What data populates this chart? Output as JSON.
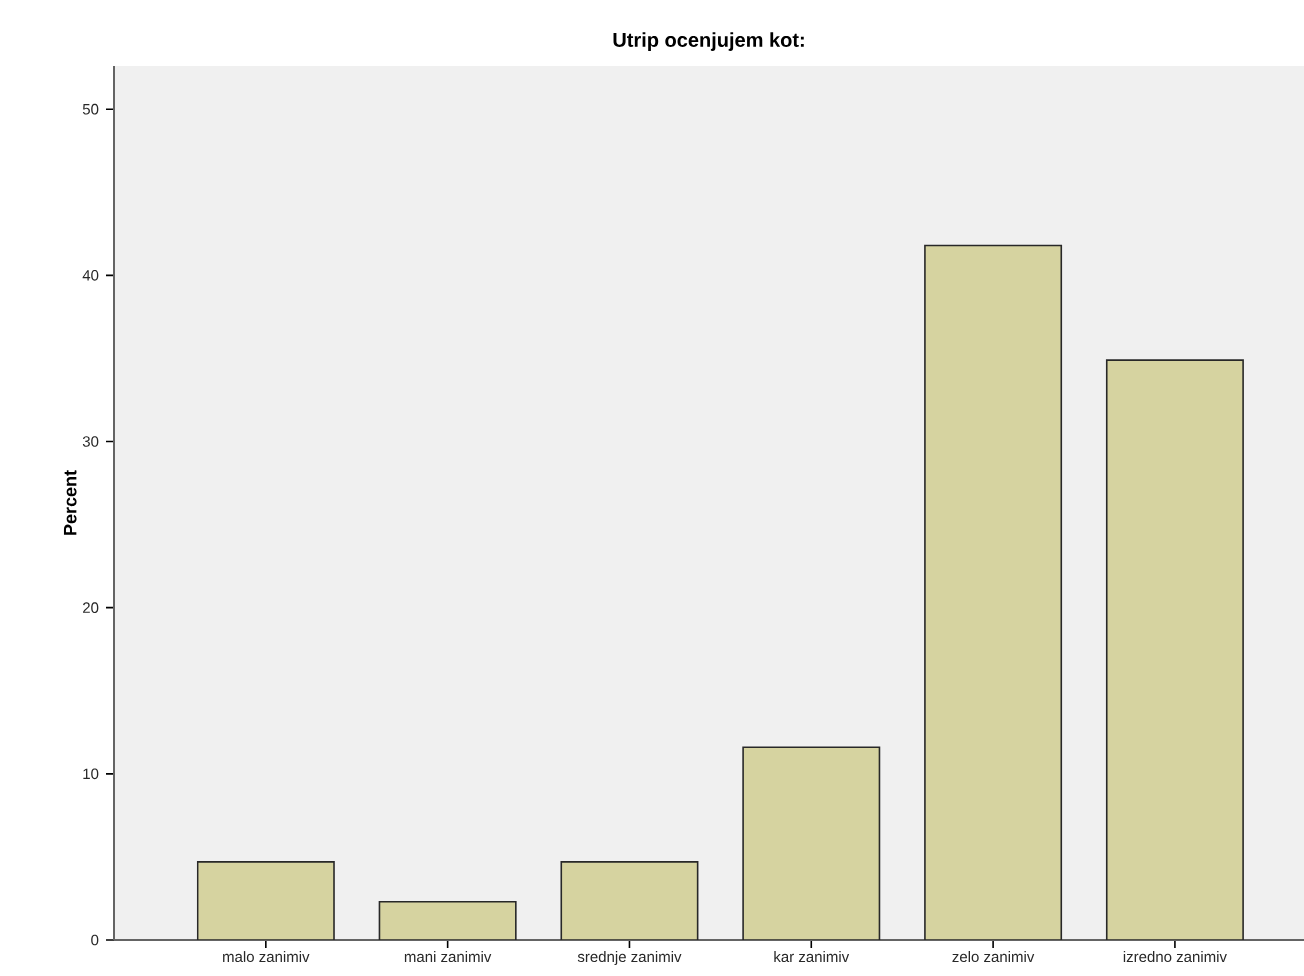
{
  "chart_data": {
    "type": "bar",
    "title": "Utrip ocenjujem kot:",
    "ylabel": "Percent",
    "categories": [
      "malo zanimiv",
      "mani zanimiv",
      "srednje zanimiv",
      "kar zanimiv",
      "zelo zanimiv",
      "izredno zanimiv"
    ],
    "values": [
      4.7,
      2.3,
      4.7,
      11.6,
      41.8,
      34.9
    ],
    "color": "#d6d3a0",
    "ylim": [
      0,
      52.6
    ],
    "yticks": [
      0,
      10,
      20,
      30,
      40,
      50
    ],
    "grid": false
  }
}
